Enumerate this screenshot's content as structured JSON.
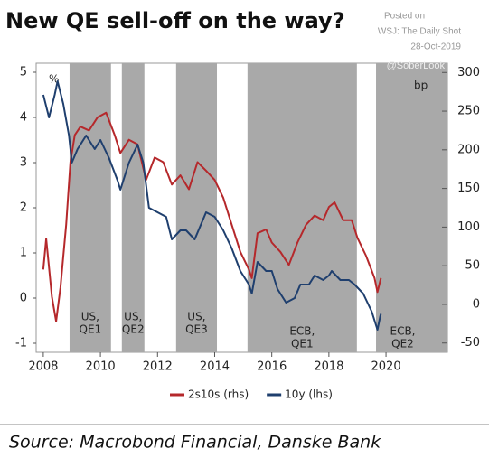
{
  "chart_data": {
    "type": "line",
    "title": "New QE sell-off on the way?",
    "credit": [
      "Posted on",
      "WSJ: The Daily Shot",
      "28-Oct-2019"
    ],
    "watermark": "@SoberLook",
    "y_unit": "%",
    "y2_unit": "bp",
    "source": "Source: Macrobond Financial, Danske Bank",
    "xlim": [
      2007.75,
      2022.15
    ],
    "xticks": [
      2008,
      2010,
      2012,
      2014,
      2016,
      2018,
      2020
    ],
    "ylim": [
      -1.2,
      5.2
    ],
    "yticks": [
      -1,
      0,
      1,
      2,
      3,
      4,
      5
    ],
    "y2lim": [
      -62,
      312
    ],
    "y2ticks": [
      -50,
      0,
      50,
      100,
      150,
      200,
      250,
      300
    ],
    "shade_color": "#a9a9a9",
    "shaded": [
      {
        "start": 2008.92,
        "end": 2010.37,
        "label": [
          "US,",
          "QE1"
        ]
      },
      {
        "start": 2010.75,
        "end": 2011.54,
        "label": [
          "US,",
          "QE2"
        ]
      },
      {
        "start": 2012.65,
        "end": 2014.08,
        "label": [
          "US,",
          "QE3"
        ]
      },
      {
        "start": 2015.15,
        "end": 2018.98,
        "label": [
          "ECB,",
          "QE1"
        ]
      },
      {
        "start": 2019.65,
        "end": 2022.15,
        "label": [
          "ECB,",
          "QE2"
        ]
      }
    ],
    "series": [
      {
        "name": "2s10s (rhs)",
        "color": "#b5282b",
        "axis": "y2",
        "x": [
          2008.0,
          2008.1,
          2008.3,
          2008.45,
          2008.6,
          2008.8,
          2008.95,
          2009.1,
          2009.3,
          2009.6,
          2009.9,
          2010.2,
          2010.5,
          2010.7,
          2011.0,
          2011.3,
          2011.6,
          2011.9,
          2012.2,
          2012.5,
          2012.8,
          2013.1,
          2013.4,
          2013.7,
          2014.0,
          2014.3,
          2014.6,
          2014.9,
          2015.2,
          2015.3,
          2015.5,
          2015.8,
          2016.0,
          2016.3,
          2016.6,
          2016.9,
          2017.2,
          2017.5,
          2017.8,
          2018.0,
          2018.2,
          2018.5,
          2018.8,
          2019.0,
          2019.3,
          2019.6,
          2019.7,
          2019.82
        ],
        "values": [
          45,
          85,
          10,
          -22,
          22,
          103,
          184,
          219,
          230,
          225,
          242,
          248,
          219,
          196,
          213,
          207,
          161,
          190,
          184,
          155,
          167,
          149,
          184,
          173,
          161,
          138,
          103,
          68,
          45,
          34,
          92,
          97,
          80,
          68,
          51,
          80,
          103,
          115,
          109,
          126,
          132,
          109,
          109,
          86,
          63,
          34,
          16,
          34
        ]
      },
      {
        "name": "10y (lhs)",
        "color": "#1f3f6e",
        "axis": "y",
        "x": [
          2008.0,
          2008.2,
          2008.4,
          2008.5,
          2008.7,
          2008.9,
          2009.0,
          2009.2,
          2009.5,
          2009.8,
          2010.0,
          2010.3,
          2010.6,
          2010.7,
          2011.0,
          2011.3,
          2011.5,
          2011.7,
          2012.0,
          2012.3,
          2012.5,
          2012.8,
          2013.0,
          2013.3,
          2013.7,
          2014.0,
          2014.3,
          2014.6,
          2014.9,
          2015.2,
          2015.3,
          2015.5,
          2015.8,
          2016.0,
          2016.2,
          2016.5,
          2016.8,
          2017.0,
          2017.3,
          2017.5,
          2017.8,
          2018.0,
          2018.1,
          2018.4,
          2018.7,
          2018.9,
          2019.2,
          2019.5,
          2019.7,
          2019.8,
          2019.82
        ],
        "values": [
          4.5,
          4.0,
          4.5,
          4.8,
          4.3,
          3.6,
          3.0,
          3.3,
          3.6,
          3.3,
          3.5,
          3.1,
          2.6,
          2.4,
          3.0,
          3.4,
          3.0,
          2.0,
          1.9,
          1.8,
          1.3,
          1.5,
          1.5,
          1.3,
          1.9,
          1.8,
          1.5,
          1.1,
          0.6,
          0.3,
          0.1,
          0.8,
          0.6,
          0.6,
          0.2,
          -0.1,
          0.0,
          0.3,
          0.3,
          0.5,
          0.4,
          0.5,
          0.6,
          0.4,
          0.4,
          0.3,
          0.1,
          -0.3,
          -0.7,
          -0.4,
          -0.35
        ]
      }
    ]
  }
}
